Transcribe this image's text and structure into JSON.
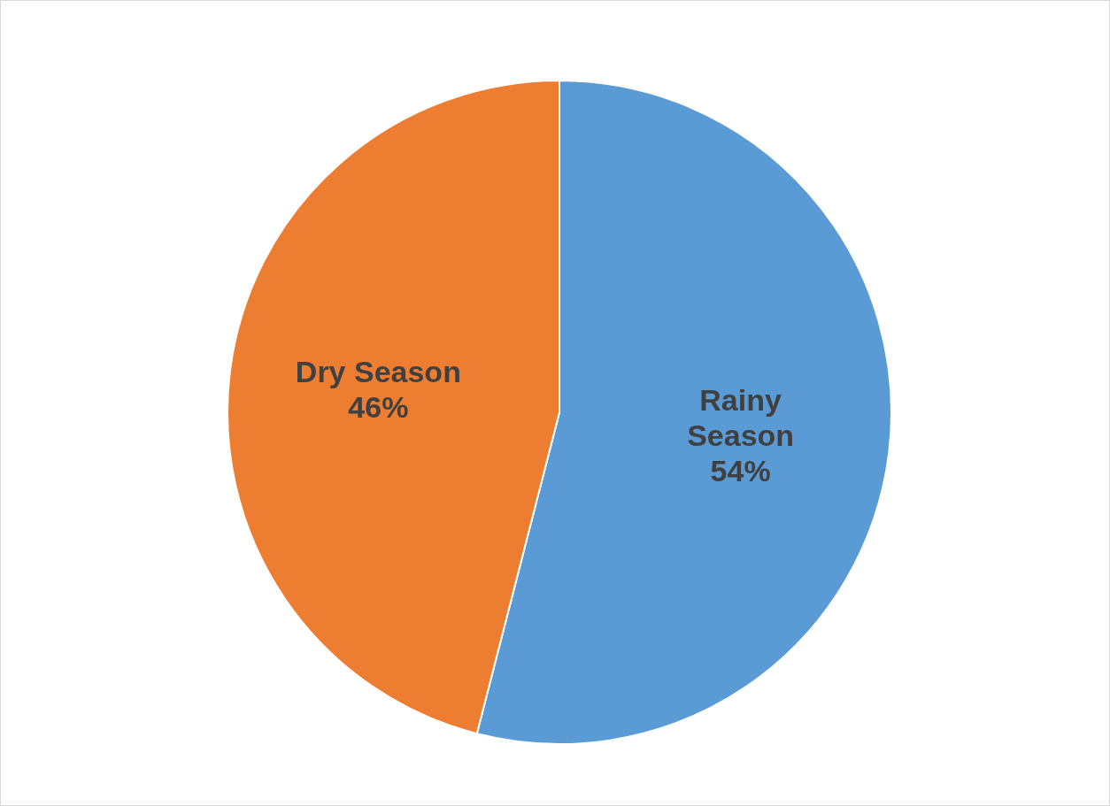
{
  "chart_data": {
    "type": "pie",
    "categories": [
      "Rainy Season",
      "Dry Season"
    ],
    "values": [
      54,
      46
    ],
    "colors": [
      "#5b9bd5",
      "#ed7d31"
    ],
    "value_labels": [
      "54%",
      "46%"
    ],
    "legend": false
  }
}
